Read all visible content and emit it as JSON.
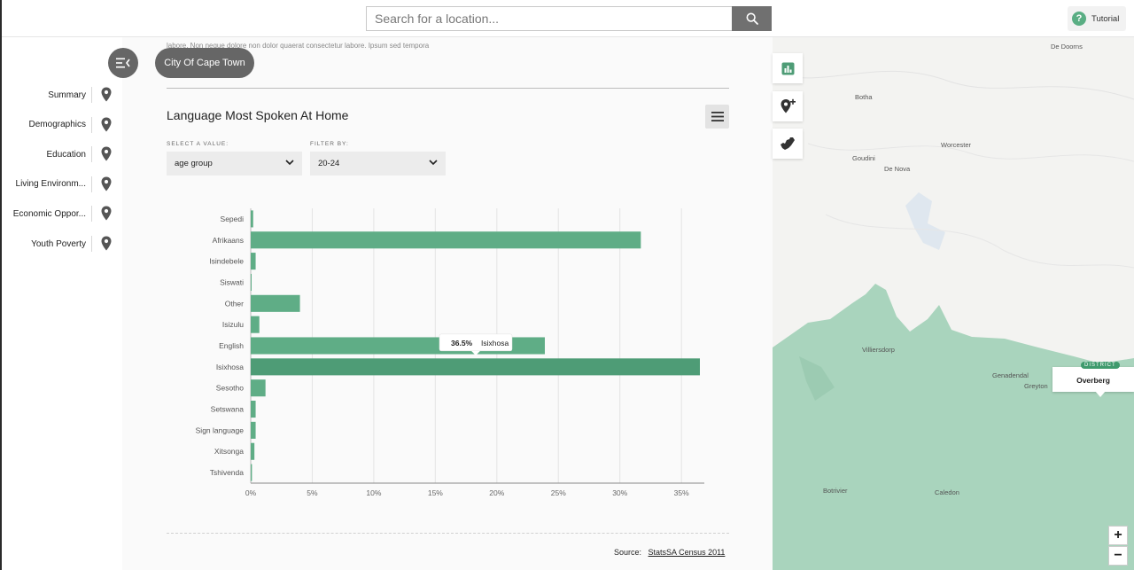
{
  "search": {
    "placeholder": "Search for a location..."
  },
  "tutorial": {
    "label": "Tutorial"
  },
  "location_pill": "City Of Cape Town",
  "sidebar": {
    "items": [
      {
        "label": "Summary"
      },
      {
        "label": "Demographics"
      },
      {
        "label": "Education"
      },
      {
        "label": "Living Environm..."
      },
      {
        "label": "Economic Oppor..."
      },
      {
        "label": "Youth Poverty"
      }
    ]
  },
  "main": {
    "intro_text": "labore. Non neque dolore non dolor quaerat consectetur labore. Ipsum sed tempora",
    "section_title": "Language Most Spoken At Home",
    "select_value": {
      "label": "SELECT A VALUE:",
      "value": "age group"
    },
    "filter_by": {
      "label": "FILTER BY:",
      "value": "20-24"
    },
    "source_label": "Source:",
    "source_link": "StatsSA Census 2011"
  },
  "tooltip": {
    "value": "36.5%",
    "label": "Isixhosa"
  },
  "chart_data": {
    "type": "bar",
    "orientation": "horizontal",
    "categories": [
      "Sepedi",
      "Afrikaans",
      "Isindebele",
      "Siswati",
      "Other",
      "Isizulu",
      "English",
      "Isixhosa",
      "Sesotho",
      "Setswana",
      "Sign language",
      "Xitsonga",
      "Tshivenda"
    ],
    "values": [
      0.2,
      31.7,
      0.4,
      0.05,
      4.0,
      0.7,
      23.9,
      36.5,
      1.2,
      0.4,
      0.4,
      0.3,
      0.1
    ],
    "xticks": [
      "0%",
      "5%",
      "10%",
      "15%",
      "20%",
      "25%",
      "30%",
      "35%"
    ],
    "xlim": [
      0,
      37
    ],
    "highlight": "Isixhosa",
    "grid": true,
    "colors": {
      "bar": "#5fad86",
      "bar_highlight": "#4e9c76"
    }
  },
  "map": {
    "labels": [
      "De Doorns",
      "Botha",
      "Worcester",
      "Goudini",
      "De Nova",
      "Villiersdorp",
      "Genadendal",
      "Greyton",
      "Botrivier",
      "Caledon"
    ],
    "district": {
      "tag": "DISTRICT",
      "name": "Overberg"
    },
    "zoom_in": "+",
    "zoom_out": "−",
    "colors": {
      "region": "#a7d3bc",
      "land": "#f3f3f1"
    }
  }
}
